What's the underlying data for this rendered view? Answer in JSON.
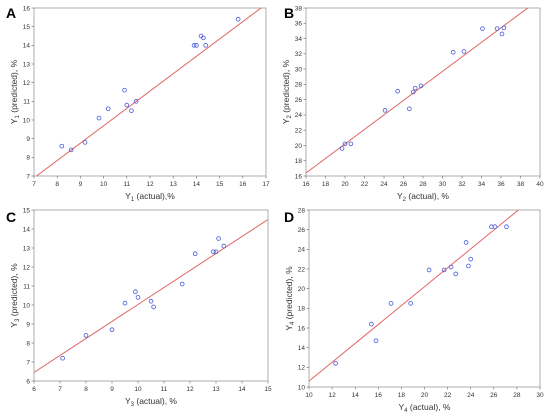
{
  "colors": {
    "fit_line": "#e06666",
    "point": "#4a5bd8",
    "frame": "#9a9a9a",
    "background": "#ffffff"
  },
  "chart_data": [
    {
      "panel": "A",
      "type": "scatter",
      "xlabel": {
        "main": "Y",
        "sub": "1",
        "rest": " (actual),%"
      },
      "ylabel": {
        "main": "Y",
        "sub": "1",
        "rest": " (predicted), %"
      },
      "xlim": [
        7,
        17
      ],
      "ylim": [
        7,
        16
      ],
      "xticks": [
        7,
        8,
        9,
        10,
        11,
        12,
        13,
        14,
        15,
        16,
        17
      ],
      "yticks": [
        7,
        8,
        9,
        10,
        11,
        12,
        13,
        14,
        15,
        16
      ],
      "grid": false,
      "fit_line": [
        [
          7,
          6.9
        ],
        [
          17,
          16.2
        ]
      ],
      "points": [
        [
          8.2,
          8.6
        ],
        [
          8.6,
          8.4
        ],
        [
          9.2,
          8.8
        ],
        [
          9.8,
          10.1
        ],
        [
          10.2,
          10.6
        ],
        [
          10.9,
          11.6
        ],
        [
          11.0,
          10.8
        ],
        [
          11.2,
          10.5
        ],
        [
          11.4,
          11.0
        ],
        [
          13.9,
          14.0
        ],
        [
          14.0,
          14.0
        ],
        [
          14.2,
          14.5
        ],
        [
          14.3,
          14.4
        ],
        [
          14.4,
          14.0
        ],
        [
          15.8,
          15.4
        ]
      ]
    },
    {
      "panel": "B",
      "type": "scatter",
      "xlabel": {
        "main": "Y",
        "sub": "2",
        "rest": " (actual), %"
      },
      "ylabel": {
        "main": "Y",
        "sub": "2",
        "rest": " (predicted), %"
      },
      "xlim": [
        16,
        40
      ],
      "ylim": [
        16,
        38
      ],
      "xticks": [
        16,
        18,
        20,
        22,
        24,
        26,
        28,
        30,
        32,
        34,
        36,
        38,
        40
      ],
      "yticks": [
        16,
        18,
        20,
        22,
        24,
        26,
        28,
        30,
        32,
        34,
        36,
        38
      ],
      "grid": false,
      "fit_line": [
        [
          16,
          16.4
        ],
        [
          40,
          39.2
        ]
      ],
      "points": [
        [
          19.7,
          19.6
        ],
        [
          20.0,
          20.2
        ],
        [
          20.6,
          20.2
        ],
        [
          24.1,
          24.6
        ],
        [
          25.4,
          27.1
        ],
        [
          26.6,
          24.8
        ],
        [
          27.0,
          27.0
        ],
        [
          27.2,
          27.5
        ],
        [
          27.8,
          27.8
        ],
        [
          31.1,
          32.2
        ],
        [
          32.2,
          32.3
        ],
        [
          34.1,
          35.3
        ],
        [
          35.6,
          35.3
        ],
        [
          36.1,
          34.6
        ],
        [
          36.3,
          35.4
        ]
      ]
    },
    {
      "panel": "C",
      "type": "scatter",
      "xlabel": {
        "main": "Y",
        "sub": "3",
        "rest": " (actual), %"
      },
      "ylabel": {
        "main": "Y",
        "sub": "3",
        "rest": " (predicted), %"
      },
      "xlim": [
        6,
        15
      ],
      "ylim": [
        6,
        15
      ],
      "xticks": [
        6,
        7,
        8,
        9,
        10,
        11,
        12,
        13,
        14,
        15
      ],
      "yticks": [
        6,
        7,
        8,
        9,
        10,
        11,
        12,
        13,
        14,
        15
      ],
      "grid": false,
      "fit_line": [
        [
          6,
          6.45
        ],
        [
          15,
          14.5
        ]
      ],
      "points": [
        [
          7.1,
          7.2
        ],
        [
          8.0,
          8.4
        ],
        [
          9.0,
          8.7
        ],
        [
          9.5,
          10.1
        ],
        [
          9.9,
          10.7
        ],
        [
          10.0,
          10.4
        ],
        [
          10.5,
          10.2
        ],
        [
          10.6,
          9.9
        ],
        [
          11.7,
          11.1
        ],
        [
          12.2,
          12.7
        ],
        [
          12.9,
          12.8
        ],
        [
          13.0,
          12.8
        ],
        [
          13.1,
          13.5
        ],
        [
          13.3,
          13.1
        ]
      ]
    },
    {
      "panel": "D",
      "type": "scatter",
      "xlabel": {
        "main": "Y",
        "sub": "4",
        "rest": " (actual), %"
      },
      "ylabel": {
        "main": "Y",
        "sub": "4",
        "rest": " (predicted), %"
      },
      "xlim": [
        10,
        30
      ],
      "ylim": [
        10,
        28
      ],
      "xticks": [
        10,
        12,
        14,
        16,
        18,
        20,
        22,
        24,
        26,
        28,
        30
      ],
      "yticks": [
        10,
        12,
        14,
        16,
        18,
        20,
        22,
        24,
        26,
        28
      ],
      "grid": false,
      "fit_line": [
        [
          10,
          10.6
        ],
        [
          30,
          29.8
        ]
      ],
      "points": [
        [
          12.3,
          12.4
        ],
        [
          15.4,
          16.4
        ],
        [
          15.8,
          14.7
        ],
        [
          17.1,
          18.5
        ],
        [
          18.8,
          18.5
        ],
        [
          20.4,
          21.9
        ],
        [
          21.7,
          21.9
        ],
        [
          22.3,
          22.2
        ],
        [
          22.7,
          21.5
        ],
        [
          23.6,
          24.7
        ],
        [
          23.8,
          22.3
        ],
        [
          24.0,
          23.0
        ],
        [
          25.8,
          26.3
        ],
        [
          26.1,
          26.3
        ],
        [
          27.1,
          26.3
        ]
      ]
    }
  ]
}
